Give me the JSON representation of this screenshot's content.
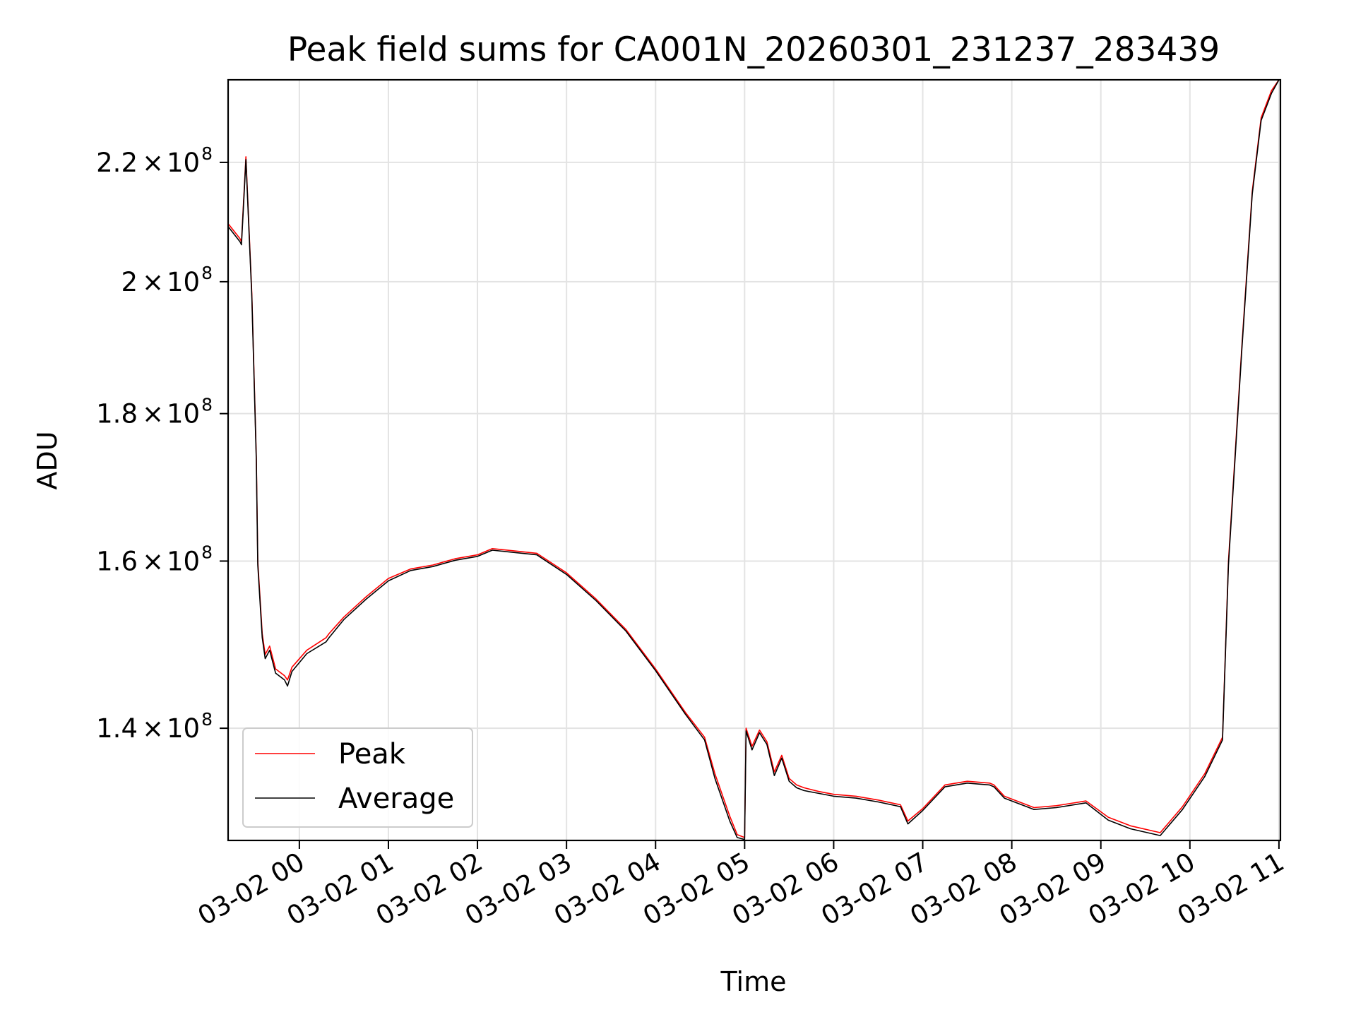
{
  "chart_data": {
    "type": "line",
    "title": "Peak field sums for CA001N_20260301_231237_283439",
    "xlabel": "Time",
    "ylabel": "ADU",
    "y_scale": "log",
    "grid": true,
    "legend_position": "lower-left",
    "x_tick_labels": [
      "03-02 00",
      "03-02 01",
      "03-02 02",
      "03-02 03",
      "03-02 04",
      "03-02 05",
      "03-02 06",
      "03-02 07",
      "03-02 08",
      "03-02 09",
      "03-02 10",
      "03-02 11"
    ],
    "y_ticks": [
      {
        "value": 140000000,
        "mantissa": "1.4",
        "exponent": "8"
      },
      {
        "value": 160000000,
        "mantissa": "1.6",
        "exponent": "8"
      },
      {
        "value": 180000000,
        "mantissa": "1.8",
        "exponent": "8"
      },
      {
        "value": 200000000,
        "mantissa": "2",
        "exponent": "8"
      },
      {
        "value": 220000000,
        "mantissa": "2.2",
        "exponent": "8"
      }
    ],
    "xlim": [
      "2026-03-01 23:12",
      "2026-03-02 11:01"
    ],
    "ylim": [
      128000000,
      235000000
    ],
    "colors": {
      "peak": "#ff0000",
      "average": "#000000"
    },
    "series": [
      {
        "name": "Peak",
        "x": [
          "2026-03-01 23:12",
          "2026-03-01 23:20",
          "2026-03-01 23:21",
          "2026-03-01 23:24",
          "2026-03-01 23:28",
          "2026-03-01 23:31",
          "2026-03-01 23:32",
          "2026-03-01 23:35",
          "2026-03-01 23:37",
          "2026-03-01 23:40",
          "2026-03-01 23:44",
          "2026-03-01 23:50",
          "2026-03-01 23:52",
          "2026-03-01 23:55",
          "2026-03-02 00:05",
          "2026-03-02 00:18",
          "2026-03-02 00:20",
          "2026-03-02 00:30",
          "2026-03-02 00:45",
          "2026-03-02 01:00",
          "2026-03-02 01:15",
          "2026-03-02 01:30",
          "2026-03-02 01:45",
          "2026-03-02 02:00",
          "2026-03-02 02:10",
          "2026-03-02 02:25",
          "2026-03-02 02:40",
          "2026-03-02 03:00",
          "2026-03-02 03:20",
          "2026-03-02 03:40",
          "2026-03-02 04:00",
          "2026-03-02 04:20",
          "2026-03-02 04:33",
          "2026-03-02 04:40",
          "2026-03-02 04:50",
          "2026-03-02 04:55",
          "2026-03-02 05:00",
          "2026-03-02 05:01",
          "2026-03-02 05:05",
          "2026-03-02 05:10",
          "2026-03-02 05:15",
          "2026-03-02 05:20",
          "2026-03-02 05:25",
          "2026-03-02 05:30",
          "2026-03-02 05:35",
          "2026-03-02 05:40",
          "2026-03-02 05:50",
          "2026-03-02 06:00",
          "2026-03-02 06:15",
          "2026-03-02 06:30",
          "2026-03-02 06:45",
          "2026-03-02 06:50",
          "2026-03-02 07:00",
          "2026-03-02 07:15",
          "2026-03-02 07:30",
          "2026-03-02 07:45",
          "2026-03-02 07:48",
          "2026-03-02 07:55",
          "2026-03-02 08:15",
          "2026-03-02 08:30",
          "2026-03-02 08:50",
          "2026-03-02 09:05",
          "2026-03-02 09:20",
          "2026-03-02 09:40",
          "2026-03-02 09:55",
          "2026-03-02 10:10",
          "2026-03-02 10:22",
          "2026-03-02 10:26",
          "2026-03-02 10:35",
          "2026-03-02 10:42",
          "2026-03-02 10:48",
          "2026-03-02 10:55",
          "2026-03-02 11:00"
        ],
        "values": [
          209500000,
          207000000,
          206500000,
          221000000,
          198000000,
          174000000,
          160000000,
          151000000,
          148500000,
          149500000,
          146800000,
          146000000,
          145500000,
          147000000,
          149000000,
          150500000,
          151000000,
          153000000,
          155500000,
          157800000,
          159000000,
          159500000,
          160300000,
          160800000,
          161600000,
          161300000,
          161000000,
          158500000,
          155200000,
          151500000,
          146800000,
          141800000,
          139000000,
          135000000,
          130500000,
          128600000,
          128300000,
          140000000,
          138000000,
          139800000,
          138500000,
          135200000,
          137000000,
          134500000,
          133800000,
          133500000,
          133100000,
          132800000,
          132600000,
          132200000,
          131700000,
          130000000,
          131300000,
          133800000,
          134200000,
          134000000,
          133800000,
          132600000,
          131400000,
          131600000,
          132100000,
          130400000,
          129500000,
          128800000,
          131500000,
          135000000,
          139000000,
          160000000,
          190000000,
          215000000,
          228000000,
          233000000,
          235000000
        ]
      },
      {
        "name": "Average",
        "x": [
          "2026-03-01 23:12",
          "2026-03-01 23:20",
          "2026-03-01 23:21",
          "2026-03-01 23:24",
          "2026-03-01 23:28",
          "2026-03-01 23:31",
          "2026-03-01 23:32",
          "2026-03-01 23:35",
          "2026-03-01 23:37",
          "2026-03-01 23:40",
          "2026-03-01 23:44",
          "2026-03-01 23:50",
          "2026-03-01 23:52",
          "2026-03-01 23:55",
          "2026-03-02 00:05",
          "2026-03-02 00:18",
          "2026-03-02 00:20",
          "2026-03-02 00:30",
          "2026-03-02 00:45",
          "2026-03-02 01:00",
          "2026-03-02 01:15",
          "2026-03-02 01:30",
          "2026-03-02 01:45",
          "2026-03-02 02:00",
          "2026-03-02 02:10",
          "2026-03-02 02:25",
          "2026-03-02 02:40",
          "2026-03-02 03:00",
          "2026-03-02 03:20",
          "2026-03-02 03:40",
          "2026-03-02 04:00",
          "2026-03-02 04:20",
          "2026-03-02 04:33",
          "2026-03-02 04:40",
          "2026-03-02 04:50",
          "2026-03-02 04:55",
          "2026-03-02 05:00",
          "2026-03-02 05:01",
          "2026-03-02 05:05",
          "2026-03-02 05:10",
          "2026-03-02 05:15",
          "2026-03-02 05:20",
          "2026-03-02 05:25",
          "2026-03-02 05:30",
          "2026-03-02 05:35",
          "2026-03-02 05:40",
          "2026-03-02 05:50",
          "2026-03-02 06:00",
          "2026-03-02 06:15",
          "2026-03-02 06:30",
          "2026-03-02 06:45",
          "2026-03-02 06:50",
          "2026-03-02 07:00",
          "2026-03-02 07:15",
          "2026-03-02 07:30",
          "2026-03-02 07:45",
          "2026-03-02 07:48",
          "2026-03-02 07:55",
          "2026-03-02 08:15",
          "2026-03-02 08:30",
          "2026-03-02 08:50",
          "2026-03-02 09:05",
          "2026-03-02 09:20",
          "2026-03-02 09:40",
          "2026-03-02 09:55",
          "2026-03-02 10:10",
          "2026-03-02 10:22",
          "2026-03-02 10:26",
          "2026-03-02 10:35",
          "2026-03-02 10:42",
          "2026-03-02 10:48",
          "2026-03-02 10:55",
          "2026-03-02 11:00"
        ],
        "values": [
          209000000,
          206500000,
          206000000,
          220500000,
          197500000,
          173500000,
          159500000,
          150500000,
          148000000,
          149000000,
          146300000,
          145500000,
          144800000,
          146500000,
          148600000,
          150000000,
          150500000,
          152700000,
          155200000,
          157500000,
          158800000,
          159300000,
          160100000,
          160600000,
          161400000,
          161100000,
          160800000,
          158300000,
          155000000,
          151300000,
          146600000,
          141600000,
          138700000,
          134500000,
          130000000,
          128300000,
          128100000,
          139700000,
          137600000,
          139500000,
          138200000,
          134800000,
          136700000,
          134200000,
          133500000,
          133200000,
          132900000,
          132600000,
          132400000,
          132000000,
          131500000,
          129700000,
          131100000,
          133600000,
          134000000,
          133800000,
          133600000,
          132400000,
          131200000,
          131400000,
          131900000,
          130100000,
          129200000,
          128500000,
          131200000,
          134700000,
          138700000,
          159500000,
          189500000,
          214500000,
          227500000,
          232500000,
          235000000
        ]
      }
    ]
  }
}
